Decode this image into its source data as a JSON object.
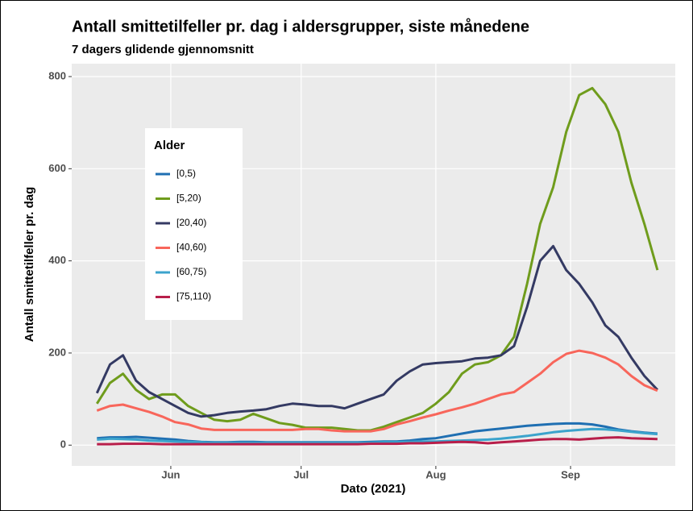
{
  "chart_data": {
    "type": "line",
    "title": "Antall smittetilfeller pr. dag i aldersgrupper, siste månedene",
    "subtitle": "7 dagers glidende gjennomsnitt",
    "x_label": "Dato (2021)",
    "y_label": "Antall smittetilfeller pr. dag",
    "legend_title": "Alder",
    "legend": "top-left",
    "grid": true,
    "xlim": [
      129.2,
      268.1
    ],
    "xticks": [
      {
        "value": 152,
        "label": "Jun"
      },
      {
        "value": 182,
        "label": "Jul"
      },
      {
        "value": 213,
        "label": "Aug"
      },
      {
        "value": 244,
        "label": "Sep"
      }
    ],
    "ylim": [
      -45,
      828
    ],
    "yticks": [
      0,
      200,
      400,
      600,
      800
    ],
    "x": [
      135,
      138,
      141,
      144,
      147,
      150,
      153,
      156,
      159,
      162,
      165,
      168,
      171,
      174,
      177,
      180,
      183,
      186,
      189,
      192,
      195,
      198,
      201,
      204,
      207,
      210,
      213,
      216,
      219,
      222,
      225,
      228,
      231,
      234,
      237,
      240,
      243,
      246,
      249,
      252,
      255,
      258,
      261,
      264
    ],
    "series": [
      {
        "name": "[0,5)",
        "color": "#1f6fb2",
        "values": [
          15,
          17,
          17,
          18,
          16,
          14,
          12,
          9,
          7,
          6,
          6,
          7,
          7,
          6,
          6,
          6,
          6,
          6,
          6,
          6,
          6,
          7,
          8,
          8,
          10,
          13,
          15,
          20,
          25,
          30,
          33,
          36,
          39,
          42,
          44,
          46,
          47,
          47,
          45,
          40,
          34,
          30,
          27,
          25
        ]
      },
      {
        "name": "[5,20)",
        "color": "#6f9c1c",
        "values": [
          90,
          135,
          155,
          120,
          100,
          110,
          110,
          85,
          70,
          55,
          52,
          55,
          68,
          58,
          48,
          44,
          38,
          38,
          38,
          35,
          32,
          32,
          40,
          50,
          60,
          70,
          90,
          115,
          155,
          175,
          180,
          195,
          235,
          350,
          480,
          560,
          680,
          760,
          775,
          740,
          680,
          570,
          480,
          380
        ]
      },
      {
        "name": "[20,40)",
        "color": "#343a63",
        "values": [
          113,
          175,
          195,
          140,
          115,
          100,
          85,
          70,
          62,
          65,
          70,
          73,
          75,
          78,
          85,
          90,
          88,
          85,
          85,
          80,
          90,
          100,
          110,
          140,
          160,
          175,
          178,
          180,
          182,
          188,
          190,
          195,
          215,
          300,
          400,
          432,
          380,
          350,
          310,
          260,
          235,
          190,
          150,
          120
        ]
      },
      {
        "name": "[40,60)",
        "color": "#f8665b",
        "values": [
          75,
          85,
          88,
          80,
          72,
          62,
          50,
          45,
          36,
          33,
          33,
          33,
          33,
          33,
          33,
          33,
          35,
          35,
          32,
          30,
          30,
          30,
          35,
          45,
          52,
          60,
          67,
          75,
          82,
          90,
          100,
          110,
          115,
          135,
          155,
          180,
          198,
          205,
          200,
          190,
          175,
          150,
          130,
          118
        ]
      },
      {
        "name": "[60,75)",
        "color": "#3ba3cc",
        "values": [
          12,
          14,
          13,
          12,
          10,
          9,
          8,
          7,
          6,
          5,
          5,
          5,
          5,
          5,
          5,
          5,
          5,
          5,
          5,
          5,
          5,
          5,
          6,
          6,
          7,
          8,
          8,
          9,
          10,
          11,
          12,
          14,
          17,
          20,
          24,
          28,
          31,
          33,
          35,
          34,
          32,
          29,
          26,
          24
        ]
      },
      {
        "name": "[75,110)",
        "color": "#b81e4a",
        "values": [
          2,
          2,
          3,
          3,
          3,
          2,
          2,
          2,
          2,
          2,
          2,
          2,
          2,
          2,
          2,
          2,
          2,
          2,
          2,
          2,
          2,
          3,
          3,
          3,
          4,
          4,
          5,
          6,
          7,
          6,
          4,
          6,
          8,
          10,
          12,
          13,
          13,
          12,
          14,
          16,
          17,
          15,
          14,
          13
        ]
      }
    ]
  }
}
